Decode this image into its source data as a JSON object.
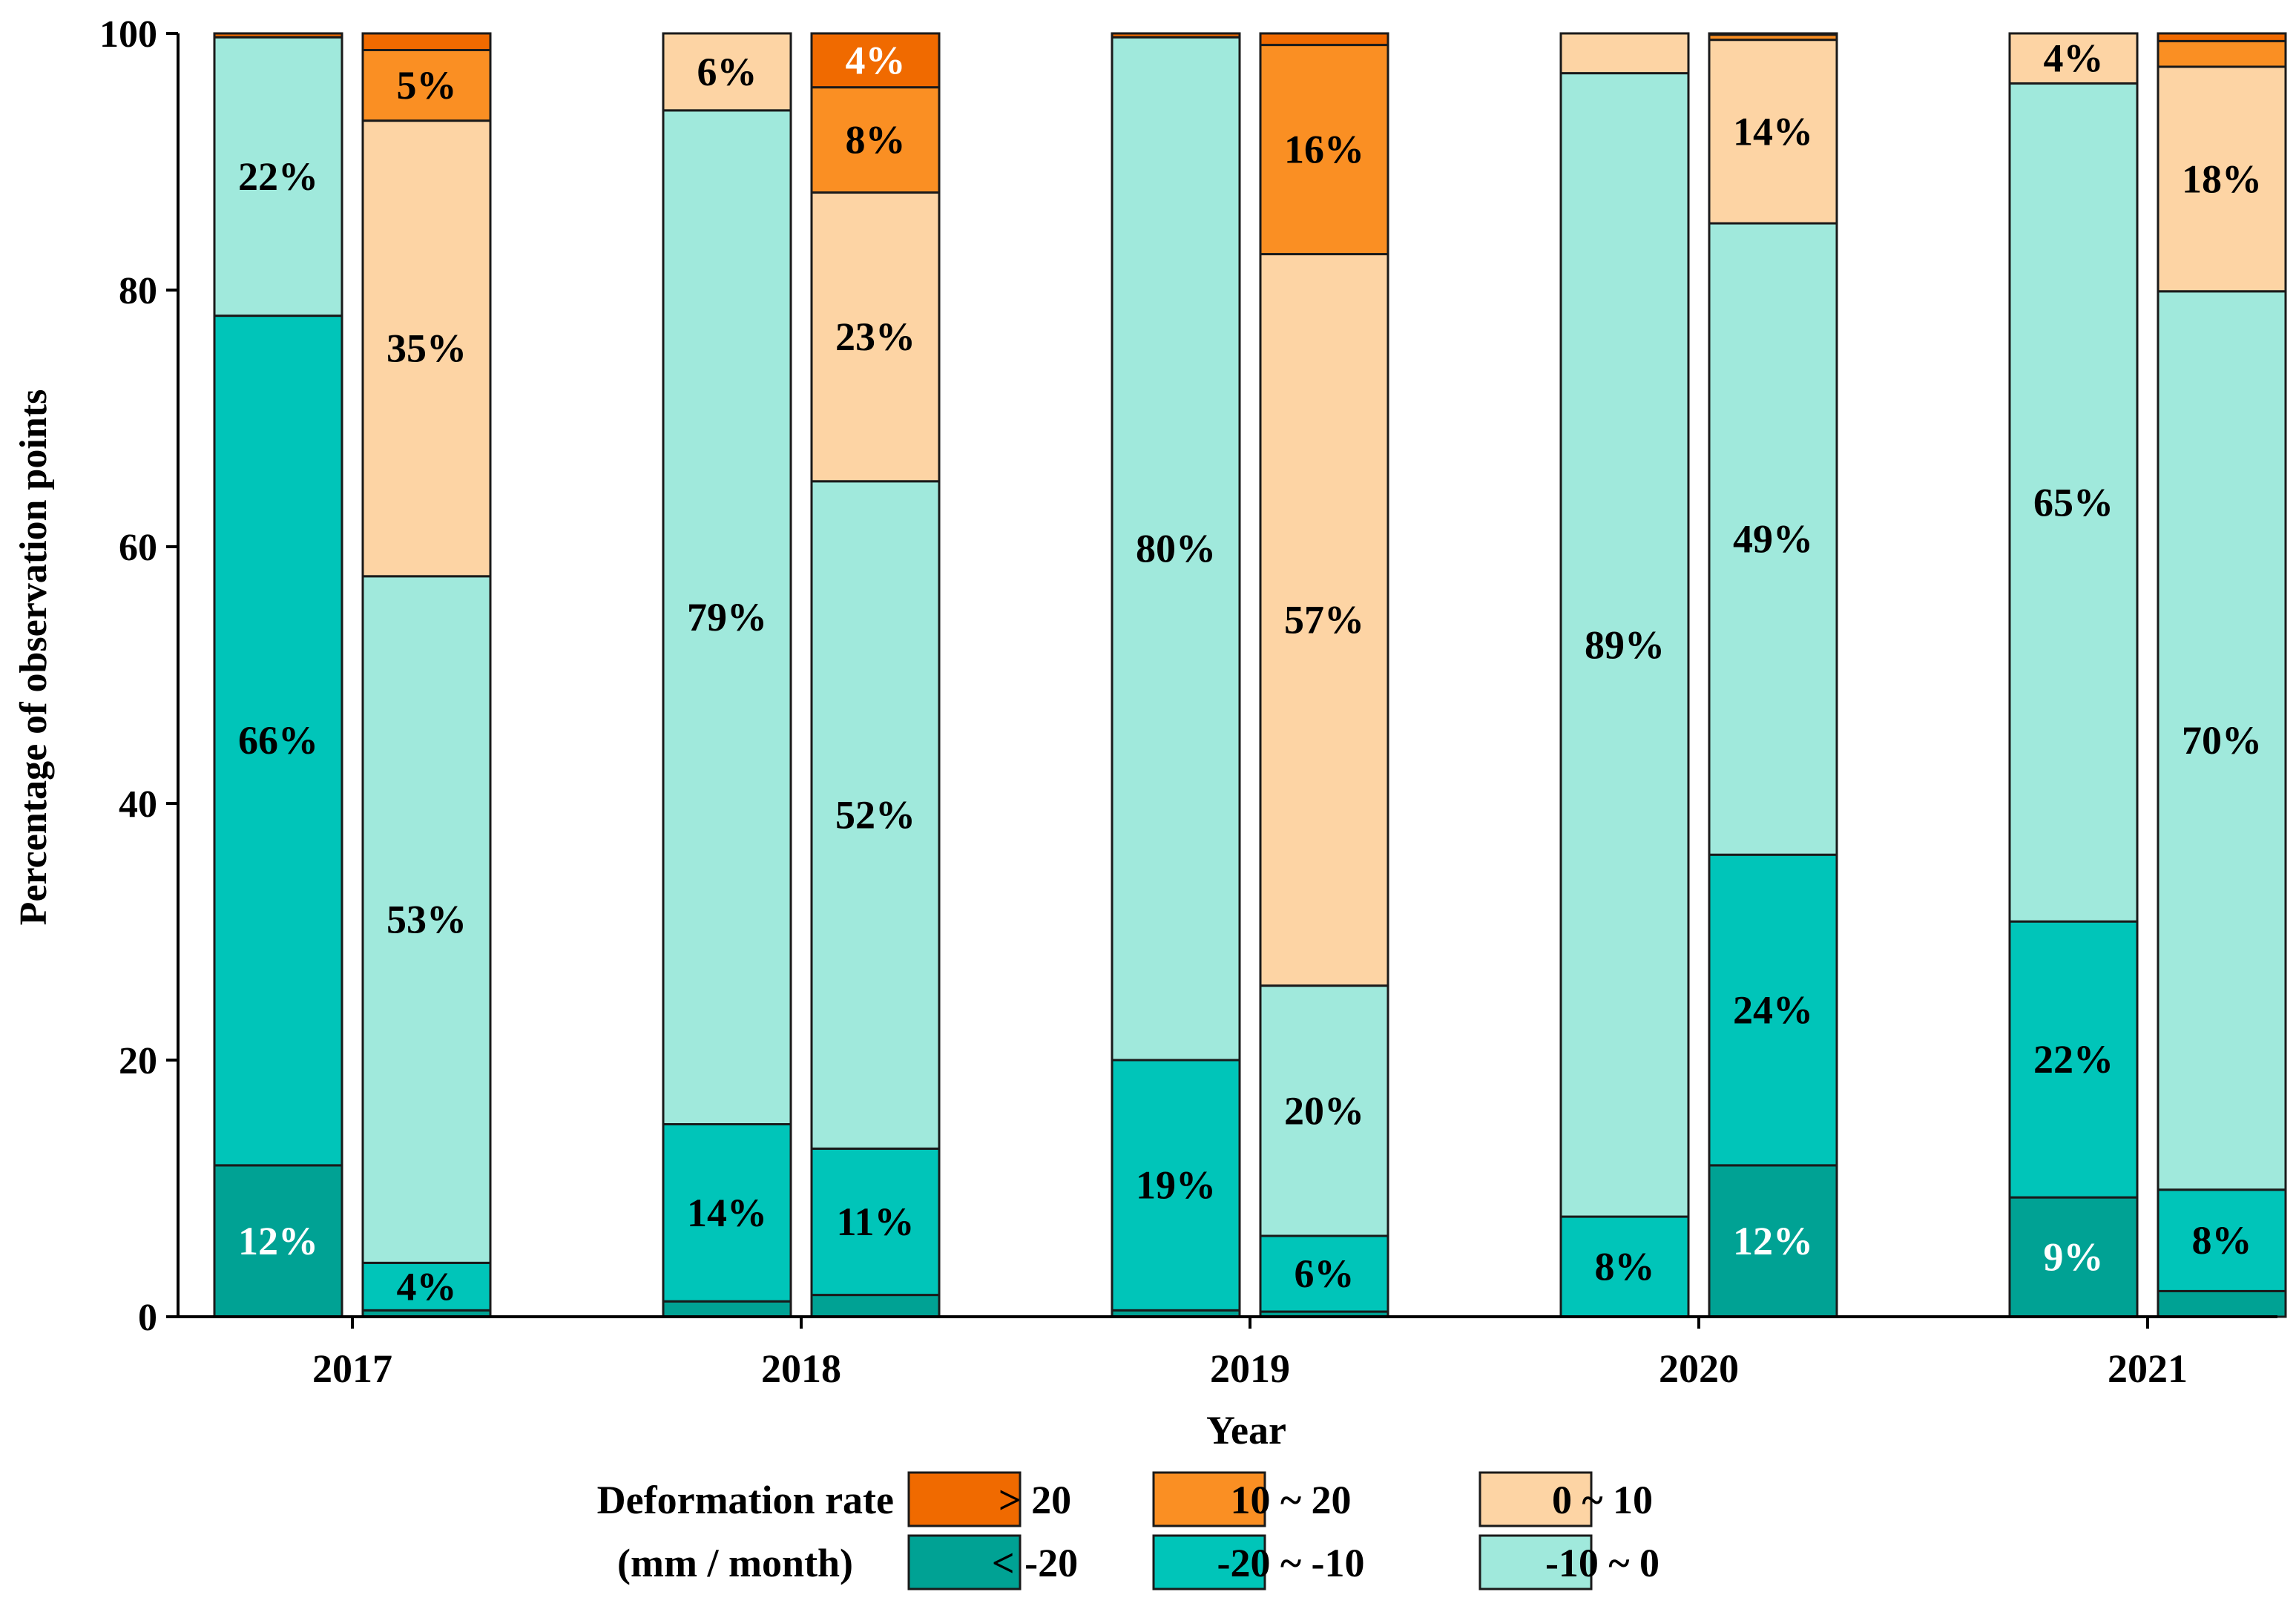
{
  "chart_data": {
    "type": "bar",
    "stacked": true,
    "title": "",
    "xlabel": "Year",
    "ylabel": "Percentage of observation points",
    "ylim": [
      0,
      100
    ],
    "yticks": [
      "0",
      "20",
      "40",
      "60",
      "80",
      "100"
    ],
    "grid": false,
    "categories": [
      "2017",
      "2018",
      "2019",
      "2020",
      "2021"
    ],
    "segment_order": [
      "< -20",
      "-20 ~ -10",
      "-10 ~ 0",
      "0 ~ 10",
      "10 ~ 20",
      ">  20"
    ],
    "colors": {
      "< -20": "#00a294",
      "-20 ~ -10": "#00c5b9",
      "-10 ~ 0": "#a0e9dc",
      "0 ~ 10": "#fdd4a4",
      "10 ~ 20": "#fa8f23",
      ">  20": "#f06a00"
    },
    "bars": [
      {
        "year": "2017",
        "position": "left",
        "values": [
          11.8,
          66.2,
          21.7,
          0,
          0,
          0.3
        ],
        "labels": [
          "12%",
          "66%",
          "22%",
          "",
          "",
          ""
        ]
      },
      {
        "year": "2017",
        "position": "right",
        "values": [
          0.5,
          3.7,
          53.5,
          35.5,
          5.5,
          1.3
        ],
        "labels": [
          "",
          "4%",
          "53%",
          "35%",
          "5%",
          ""
        ]
      },
      {
        "year": "2018",
        "position": "left",
        "values": [
          1.2,
          13.8,
          79.0,
          6.0,
          0,
          0
        ],
        "labels": [
          "",
          "14%",
          "79%",
          "6%",
          "",
          ""
        ]
      },
      {
        "year": "2018",
        "position": "right",
        "values": [
          1.7,
          11.4,
          52.0,
          22.5,
          8.2,
          4.2
        ],
        "labels": [
          "",
          "11%",
          "52%",
          "23%",
          "8%",
          "4%"
        ]
      },
      {
        "year": "2019",
        "position": "left",
        "values": [
          0.5,
          19.5,
          79.7,
          0,
          0,
          0.3
        ],
        "labels": [
          "",
          "19%",
          "80%",
          "",
          "",
          ""
        ]
      },
      {
        "year": "2019",
        "position": "right",
        "values": [
          0.4,
          5.9,
          19.5,
          57.0,
          16.3,
          0.9
        ],
        "labels": [
          "",
          "6%",
          "20%",
          "57%",
          "16%",
          ""
        ]
      },
      {
        "year": "2020",
        "position": "left",
        "values": [
          0,
          7.8,
          89.1,
          3.1,
          0,
          0
        ],
        "labels": [
          "",
          "8%",
          "89%",
          "",
          "",
          ""
        ]
      },
      {
        "year": "2020",
        "position": "right",
        "values": [
          11.8,
          24.2,
          49.2,
          14.3,
          0.4,
          0.1
        ],
        "labels": [
          "12%",
          "24%",
          "49%",
          "14%",
          "",
          ""
        ]
      },
      {
        "year": "2021",
        "position": "left",
        "values": [
          9.3,
          21.5,
          65.3,
          3.9,
          0,
          0
        ],
        "labels": [
          "9%",
          "22%",
          "65%",
          "4%",
          "",
          ""
        ]
      },
      {
        "year": "2021",
        "position": "right",
        "values": [
          2.0,
          7.9,
          70.0,
          17.5,
          2.0,
          0.6
        ],
        "labels": [
          "",
          "8%",
          "70%",
          "18%",
          "",
          ""
        ]
      }
    ],
    "legend": {
      "title_line1": "Deformation rate",
      "title_line2": "(mm / month)",
      "placement": "bottom",
      "entries": [
        ">  20",
        "10  ~  20",
        "0  ~  10",
        "< -20",
        "-20 ~ -10",
        "-10 ~ 0"
      ]
    }
  }
}
